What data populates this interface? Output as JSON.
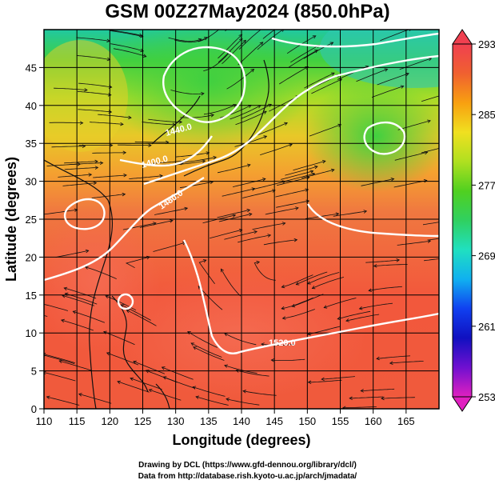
{
  "title": "GSM 00Z27May2024 (850.0hPa)",
  "xaxis": {
    "label": "Longitude (degrees)",
    "ticks": [
      "110",
      "115",
      "120",
      "125",
      "130",
      "135",
      "140",
      "145",
      "150",
      "155",
      "160",
      "165"
    ]
  },
  "yaxis": {
    "label": "Latitude  (degrees)",
    "ticks": [
      "0",
      "5",
      "10",
      "15",
      "20",
      "25",
      "30",
      "35",
      "40",
      "45"
    ]
  },
  "colorbar": {
    "labels": [
      "293",
      "285",
      "277",
      "269",
      "261",
      "253"
    ],
    "min": 253,
    "max": 293,
    "colors": [
      "#e020c0",
      "#7010d0",
      "#1010c0",
      "#1040f0",
      "#10b0f0",
      "#20e0c0",
      "#30d060",
      "#50d020",
      "#b0e020",
      "#f0e020",
      "#f8a010",
      "#f06030",
      "#f04050"
    ]
  },
  "contours": [
    {
      "label": "1520.0"
    },
    {
      "label": "1480.0"
    },
    {
      "label": "1440.0"
    },
    {
      "label": "1400.0"
    }
  ],
  "credits": {
    "line1": "Drawing by DCL (https://www.gfd-dennou.org/library/dcl/)",
    "line2": "Data from http://database.rish.kyoto-u.ac.jp/arch/jmadata/"
  }
}
